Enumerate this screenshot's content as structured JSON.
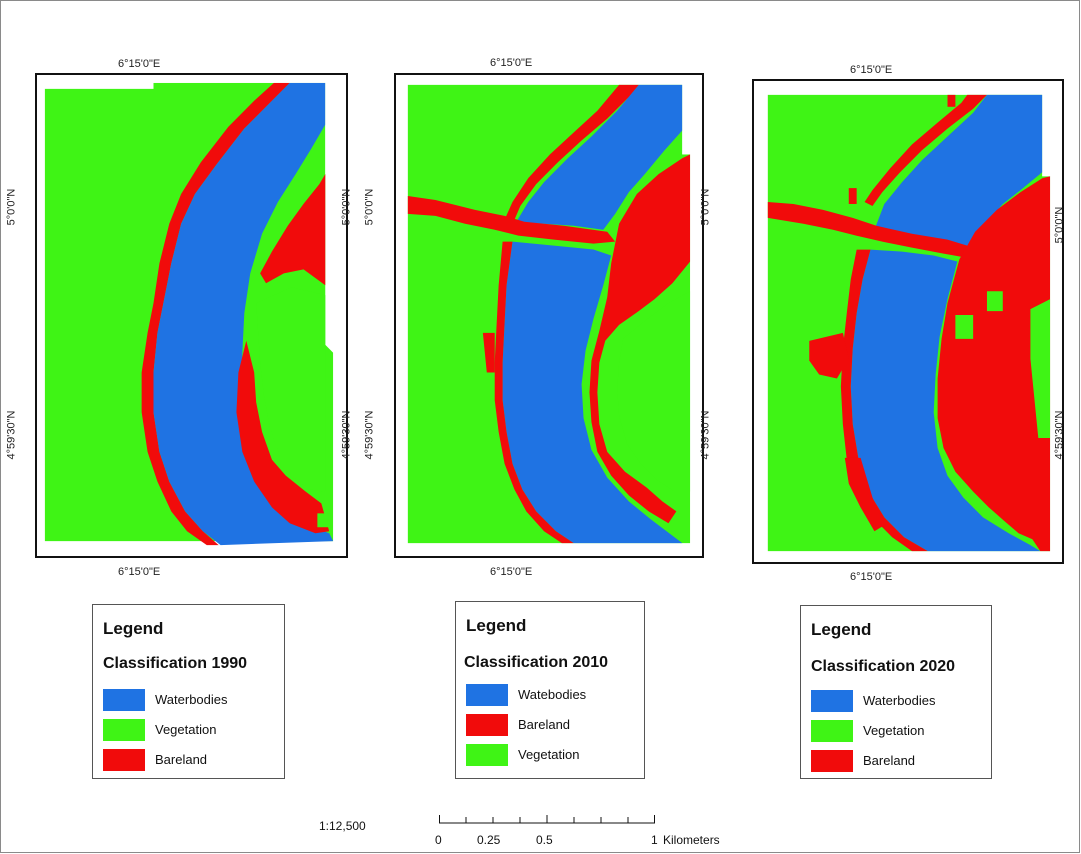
{
  "colors": {
    "waterbodies": "#1f73e3",
    "vegetation": "#3ff415",
    "bareland": "#f10b0b",
    "frame": "#111111"
  },
  "maps": [
    {
      "id": "1990",
      "top_label": "6°15'0\"E",
      "bottom_label": "6°15'0\"E",
      "left_labels": [
        "5°0'0\"N",
        "4°59'30\"N"
      ],
      "right_labels": [
        "5°0'0\"N",
        "4°59'30\"N"
      ]
    },
    {
      "id": "2010",
      "top_label": "6°15'0\"E",
      "bottom_label": "6°15'0\"E",
      "left_labels": [
        "5°0'0\"N",
        "4°59'30\"N"
      ],
      "right_labels": [
        "5°0'0\"N",
        "4°59'30\"N"
      ]
    },
    {
      "id": "2020",
      "top_label": "6°15'0\"E",
      "bottom_label": "6°15'0\"E",
      "right_labels": [
        "5°0'0\"N",
        "4°59'30\"N"
      ]
    }
  ],
  "legends": [
    {
      "title": "Legend",
      "subtitle": "Classification 1990",
      "items": [
        {
          "label": "Waterbodies",
          "class": "waterbodies"
        },
        {
          "label": "Vegetation",
          "class": "vegetation"
        },
        {
          "label": "Bareland",
          "class": "bareland"
        }
      ]
    },
    {
      "title": "Legend",
      "subtitle": "Classification 2010",
      "items": [
        {
          "label": "Watebodies",
          "class": "waterbodies"
        },
        {
          "label": "Bareland",
          "class": "bareland"
        },
        {
          "label": "Vegetation",
          "class": "vegetation"
        }
      ]
    },
    {
      "title": "Legend",
      "subtitle": "Classification 2020",
      "items": [
        {
          "label": "Waterbodies",
          "class": "waterbodies"
        },
        {
          "label": "Vegetation",
          "class": "vegetation"
        },
        {
          "label": "Bareland",
          "class": "bareland"
        }
      ]
    }
  ],
  "scale": {
    "ratio": "1:12,500",
    "ticks": [
      "0",
      "0.25",
      "0.5",
      "1"
    ],
    "unit": "Kilometers"
  }
}
